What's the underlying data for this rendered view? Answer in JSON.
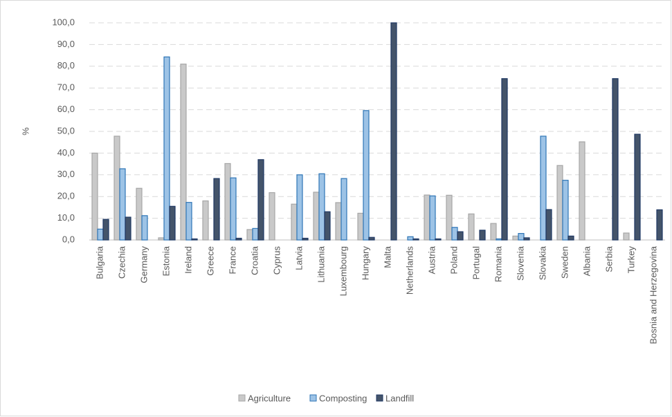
{
  "chart_data": {
    "type": "bar",
    "ylabel": "%",
    "categories": [
      "Bulgaria",
      "Czechia",
      "Germany",
      "Estonia",
      "Ireland",
      "Greece",
      "France",
      "Croatia",
      "Cyprus",
      "Latvia",
      "Lithuania",
      "Luxembourg",
      "Hungary",
      "Malta",
      "Netherlands",
      "Austria",
      "Poland",
      "Portugal",
      "Romania",
      "Slovenia",
      "Slovakia",
      "Sweden",
      "Albania",
      "Serbia",
      "Turkey",
      "Bosnia and Herzegovina"
    ],
    "series": [
      {
        "name": "Agriculture",
        "color": "#c9c9c9",
        "values": [
          40,
          47.8,
          23.8,
          1,
          81,
          18,
          35.2,
          4.8,
          21.8,
          16.5,
          22,
          17.2,
          12.3,
          0,
          0,
          20.7,
          20.6,
          12,
          7.6,
          1.8,
          0,
          34.3,
          45.2,
          0,
          3.2,
          0
        ]
      },
      {
        "name": "Composting",
        "color": "#9dc3e6",
        "values": [
          5,
          32.8,
          11.2,
          84.3,
          17.3,
          0,
          28.6,
          5.3,
          0,
          30,
          30.5,
          28.3,
          59.6,
          0,
          1.5,
          20.3,
          5.8,
          0,
          0.5,
          3,
          47.8,
          27.5,
          0,
          0,
          0,
          0
        ]
      },
      {
        "name": "Landfill",
        "color": "#44546a",
        "values": [
          9.5,
          10.5,
          0,
          15.5,
          0.5,
          28.3,
          0.8,
          37,
          0,
          0.8,
          13,
          0,
          1.2,
          100,
          0.5,
          0.5,
          3.8,
          4.5,
          74.3,
          1,
          14,
          1.8,
          0,
          74.3,
          48.7,
          13.9
        ]
      }
    ],
    "ylim": [
      0,
      100
    ],
    "yticks": [
      {
        "value": 0,
        "label": "0,0"
      },
      {
        "value": 10,
        "label": "10,0"
      },
      {
        "value": 20,
        "label": "20,0"
      },
      {
        "value": 30,
        "label": "30,0"
      },
      {
        "value": 40,
        "label": "40,0"
      },
      {
        "value": 50,
        "label": "50,0"
      },
      {
        "value": 60,
        "label": "60,0"
      },
      {
        "value": 70,
        "label": "70,0"
      },
      {
        "value": 80,
        "label": "80,0"
      },
      {
        "value": 90,
        "label": "90,0"
      },
      {
        "value": 100,
        "label": "100,0"
      }
    ],
    "grid": true,
    "legend": "bottom"
  }
}
